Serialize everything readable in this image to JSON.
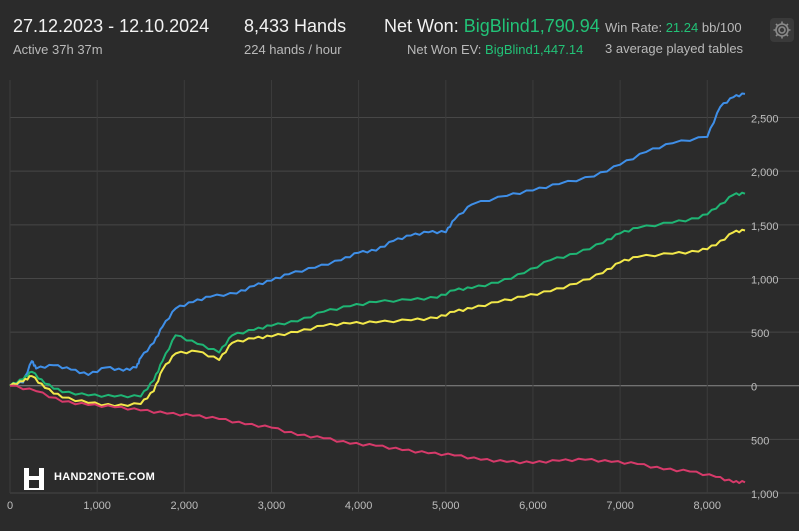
{
  "header": {
    "date_range": "27.12.2023 - 12.10.2024",
    "active": "Active 37h 37m",
    "hands": "8,433 Hands",
    "hands_rate": "224 hands / hour",
    "net_won_label": "Net Won: ",
    "net_won_value": "BigBlind1,790.94",
    "net_won_ev_label": "Net Won  EV: ",
    "net_won_ev_value": "BigBlind1,447.14",
    "win_rate_label": "Win Rate: ",
    "win_rate_value": "21.24",
    "win_rate_unit": " bb/100",
    "tables": "3 average played tables",
    "settings_icon": "gear-icon"
  },
  "logo": {
    "text": "HAND2NOTE.COM"
  },
  "colors": {
    "net_won": "#3f8fe8",
    "green_series": "#1fb574",
    "yellow_series": "#f2e84a",
    "red_series": "#d63a6a",
    "background": "#2b2b2b"
  },
  "chart_data": {
    "type": "line",
    "xlim": [
      0,
      8433
    ],
    "ylim": [
      -1000,
      2850
    ],
    "x_ticks": [
      0,
      1000,
      2000,
      3000,
      4000,
      5000,
      6000,
      7000,
      8000
    ],
    "x_tick_labels": [
      "0",
      "1,000",
      "2,000",
      "3,000",
      "4,000",
      "5,000",
      "6,000",
      "7,000",
      "8,000"
    ],
    "y_ticks": [
      2500,
      2000,
      1500,
      1000,
      500,
      0,
      -500,
      -1000
    ],
    "y_tick_labels": [
      "2,500",
      "2,000",
      "1,500",
      "1,000",
      "500",
      "0",
      "500",
      "1,000"
    ],
    "grid": true,
    "series": [
      {
        "color": "#3f8fe8",
        "points": [
          [
            0,
            0
          ],
          [
            150,
            30
          ],
          [
            250,
            230
          ],
          [
            300,
            160
          ],
          [
            500,
            190
          ],
          [
            700,
            150
          ],
          [
            900,
            100
          ],
          [
            1100,
            170
          ],
          [
            1300,
            140
          ],
          [
            1450,
            170
          ],
          [
            1500,
            260
          ],
          [
            1650,
            400
          ],
          [
            1750,
            550
          ],
          [
            1900,
            720
          ],
          [
            2100,
            780
          ],
          [
            2300,
            830
          ],
          [
            2600,
            860
          ],
          [
            2800,
            930
          ],
          [
            3000,
            980
          ],
          [
            3200,
            1040
          ],
          [
            3500,
            1100
          ],
          [
            3800,
            1170
          ],
          [
            4000,
            1240
          ],
          [
            4200,
            1260
          ],
          [
            4400,
            1350
          ],
          [
            4600,
            1400
          ],
          [
            4800,
            1430
          ],
          [
            5000,
            1430
          ],
          [
            5100,
            1550
          ],
          [
            5300,
            1690
          ],
          [
            5700,
            1770
          ],
          [
            6000,
            1820
          ],
          [
            6300,
            1880
          ],
          [
            6700,
            1950
          ],
          [
            7000,
            2060
          ],
          [
            7300,
            2180
          ],
          [
            7600,
            2260
          ],
          [
            8000,
            2320
          ],
          [
            8150,
            2600
          ],
          [
            8300,
            2690
          ],
          [
            8433,
            2720
          ]
        ]
      },
      {
        "color": "#1fb574",
        "points": [
          [
            0,
            0
          ],
          [
            150,
            60
          ],
          [
            250,
            130
          ],
          [
            400,
            20
          ],
          [
            600,
            -60
          ],
          [
            900,
            -90
          ],
          [
            1200,
            -100
          ],
          [
            1500,
            -100
          ],
          [
            1650,
            50
          ],
          [
            1750,
            230
          ],
          [
            1900,
            470
          ],
          [
            2150,
            390
          ],
          [
            2400,
            310
          ],
          [
            2550,
            470
          ],
          [
            2800,
            520
          ],
          [
            3000,
            560
          ],
          [
            3300,
            600
          ],
          [
            3600,
            690
          ],
          [
            3900,
            740
          ],
          [
            4200,
            780
          ],
          [
            4600,
            800
          ],
          [
            4900,
            820
          ],
          [
            5100,
            890
          ],
          [
            5300,
            910
          ],
          [
            5600,
            960
          ],
          [
            5900,
            1050
          ],
          [
            6200,
            1170
          ],
          [
            6500,
            1230
          ],
          [
            6800,
            1330
          ],
          [
            7000,
            1420
          ],
          [
            7200,
            1470
          ],
          [
            7600,
            1520
          ],
          [
            7900,
            1560
          ],
          [
            8100,
            1650
          ],
          [
            8300,
            1780
          ],
          [
            8433,
            1790
          ]
        ]
      },
      {
        "color": "#f2e84a",
        "points": [
          [
            0,
            0
          ],
          [
            150,
            40
          ],
          [
            250,
            90
          ],
          [
            400,
            -20
          ],
          [
            600,
            -110
          ],
          [
            900,
            -160
          ],
          [
            1200,
            -190
          ],
          [
            1500,
            -170
          ],
          [
            1650,
            -50
          ],
          [
            1750,
            150
          ],
          [
            1900,
            300
          ],
          [
            2150,
            320
          ],
          [
            2400,
            240
          ],
          [
            2550,
            400
          ],
          [
            2800,
            440
          ],
          [
            3000,
            460
          ],
          [
            3300,
            500
          ],
          [
            3600,
            560
          ],
          [
            3900,
            580
          ],
          [
            4200,
            590
          ],
          [
            4600,
            610
          ],
          [
            4900,
            630
          ],
          [
            5100,
            690
          ],
          [
            5300,
            720
          ],
          [
            5600,
            780
          ],
          [
            5900,
            830
          ],
          [
            6200,
            880
          ],
          [
            6500,
            950
          ],
          [
            6800,
            1050
          ],
          [
            7000,
            1150
          ],
          [
            7200,
            1200
          ],
          [
            7600,
            1230
          ],
          [
            7900,
            1250
          ],
          [
            8100,
            1310
          ],
          [
            8300,
            1430
          ],
          [
            8433,
            1447
          ]
        ]
      },
      {
        "color": "#d63a6a",
        "points": [
          [
            0,
            0
          ],
          [
            300,
            -50
          ],
          [
            600,
            -150
          ],
          [
            900,
            -180
          ],
          [
            1200,
            -200
          ],
          [
            1500,
            -230
          ],
          [
            1800,
            -260
          ],
          [
            2100,
            -280
          ],
          [
            2400,
            -310
          ],
          [
            2700,
            -360
          ],
          [
            3000,
            -390
          ],
          [
            3300,
            -460
          ],
          [
            3600,
            -490
          ],
          [
            3900,
            -540
          ],
          [
            4200,
            -560
          ],
          [
            4500,
            -600
          ],
          [
            4800,
            -630
          ],
          [
            5100,
            -650
          ],
          [
            5400,
            -690
          ],
          [
            5700,
            -710
          ],
          [
            6000,
            -720
          ],
          [
            6300,
            -700
          ],
          [
            6600,
            -690
          ],
          [
            6900,
            -710
          ],
          [
            7200,
            -730
          ],
          [
            7500,
            -780
          ],
          [
            7800,
            -800
          ],
          [
            8100,
            -850
          ],
          [
            8300,
            -900
          ],
          [
            8433,
            -900
          ]
        ]
      }
    ]
  }
}
